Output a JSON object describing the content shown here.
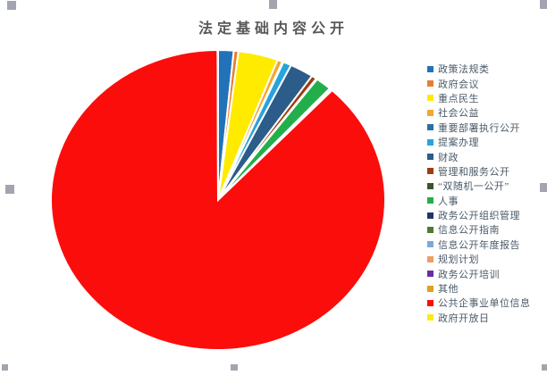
{
  "title": {
    "text": "法定基础内容公开"
  },
  "colors": {
    "background": "#FFFFFF",
    "title_text": "#595959",
    "legend_text": "#4A5A68",
    "slice_border": "#FFFFFF",
    "selection_handle": "#A2A5AF"
  },
  "chart_data": {
    "type": "pie",
    "title": "法定基础内容公开",
    "legend_position": "right",
    "direction": "clockwise",
    "start_angle_deg": 0,
    "categories": [
      "政策法规类",
      "政府会议",
      "重点民生",
      "社会公益",
      "重要部署执行公开",
      "提案办理",
      "财政",
      "管理和服务公开",
      "“双随机一公开”",
      "人事",
      "政务公开组织管理",
      "信息公开指南",
      "信息公开年度报告",
      "规划计划",
      "政务公开培训",
      "其他",
      "公共企事业单位信息",
      "政府开放日"
    ],
    "values_pct_estimated": [
      1.5,
      0.45,
      3.85,
      0.5,
      0.1,
      0.8,
      2.3,
      0.5,
      0.1,
      1.55,
      0.05,
      0.05,
      0.05,
      0.05,
      0.05,
      0.05,
      88.0,
      0.05
    ],
    "colors": [
      "#2272B9",
      "#E87D31",
      "#FFEB00",
      "#F0A830",
      "#2E6DA8",
      "#29A3DC",
      "#2B5C8A",
      "#9E3B10",
      "#39562B",
      "#22AF4B",
      "#1F3864",
      "#4E7A33",
      "#7FA8D9",
      "#ED9E63",
      "#6A2E9E",
      "#D9A521",
      "#FB0D0C",
      "#F7EC13"
    ]
  }
}
